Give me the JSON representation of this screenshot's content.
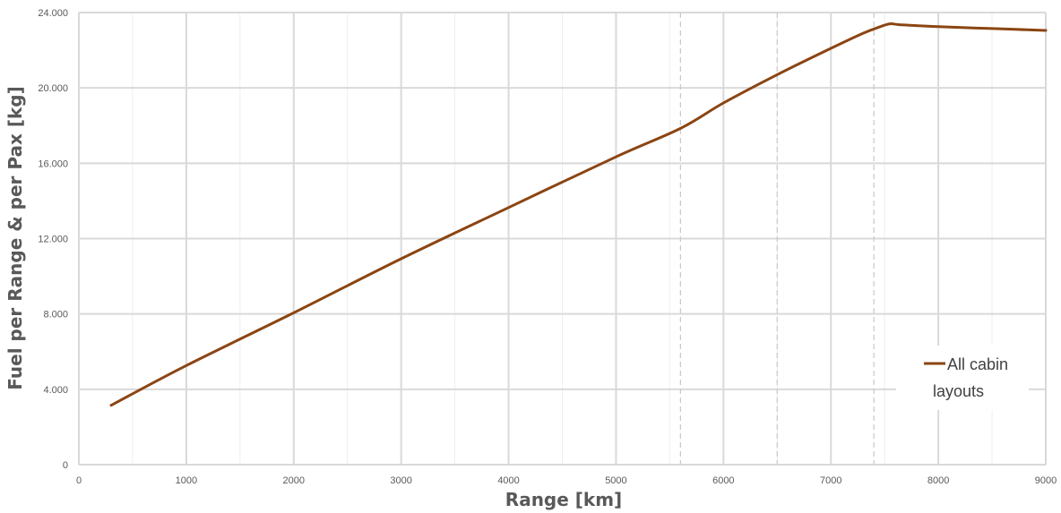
{
  "chart_data": {
    "type": "line",
    "title": "",
    "xlabel": "Range [km]",
    "ylabel": "Fuel per Range & per Pax [kg]",
    "xlim": [
      0,
      9000
    ],
    "ylim": [
      0,
      24000
    ],
    "x_ticks": [
      0,
      1000,
      2000,
      3000,
      4000,
      5000,
      6000,
      7000,
      8000,
      9000
    ],
    "x_tick_labels": [
      "0",
      "1000",
      "2000",
      "3000",
      "4000",
      "5000",
      "6000",
      "7000",
      "8000",
      "9000"
    ],
    "y_ticks": [
      0,
      4000,
      8000,
      12000,
      16000,
      20000,
      24000
    ],
    "y_tick_labels": [
      "0",
      "4.000",
      "8.000",
      "12.000",
      "16.000",
      "20.000",
      "24.000"
    ],
    "x_minor_grid_step": 500,
    "grid": true,
    "reference_lines_x": [
      5600,
      6500,
      7400
    ],
    "legend_position": "right",
    "series": [
      {
        "name": "All cabin layouts",
        "color": "#8B4513",
        "x": [
          300,
          1000,
          2000,
          3000,
          4000,
          5000,
          5600,
          6000,
          6500,
          7000,
          7300,
          7450,
          7550,
          7650,
          8000,
          8500,
          9000
        ],
        "y": [
          3150,
          5260,
          8060,
          10930,
          13650,
          16340,
          17850,
          19200,
          20700,
          22100,
          22900,
          23230,
          23400,
          23350,
          23250,
          23150,
          23050
        ]
      }
    ]
  }
}
